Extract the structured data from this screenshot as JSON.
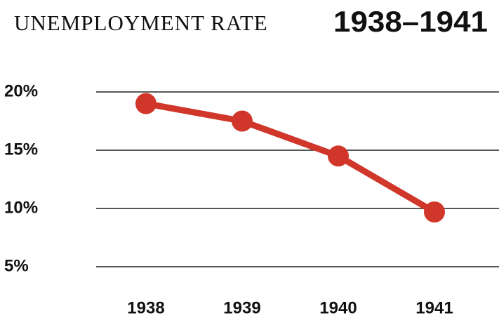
{
  "chart_data": {
    "type": "line",
    "title": "UNEMPLOYMENT RATE",
    "subtitle": "1938–1941",
    "categories": [
      "1938",
      "1939",
      "1940",
      "1941"
    ],
    "series": [
      {
        "name": "Unemployment rate",
        "color": "#d0362a",
        "values": [
          19.0,
          17.5,
          14.5,
          9.7
        ]
      }
    ],
    "ylim": [
      5,
      20
    ],
    "yticks": [
      {
        "value": 5,
        "label": "5%"
      },
      {
        "value": 10,
        "label": "10%"
      },
      {
        "value": 15,
        "label": "15%"
      },
      {
        "value": 20,
        "label": "20%"
      }
    ],
    "grid": true
  }
}
